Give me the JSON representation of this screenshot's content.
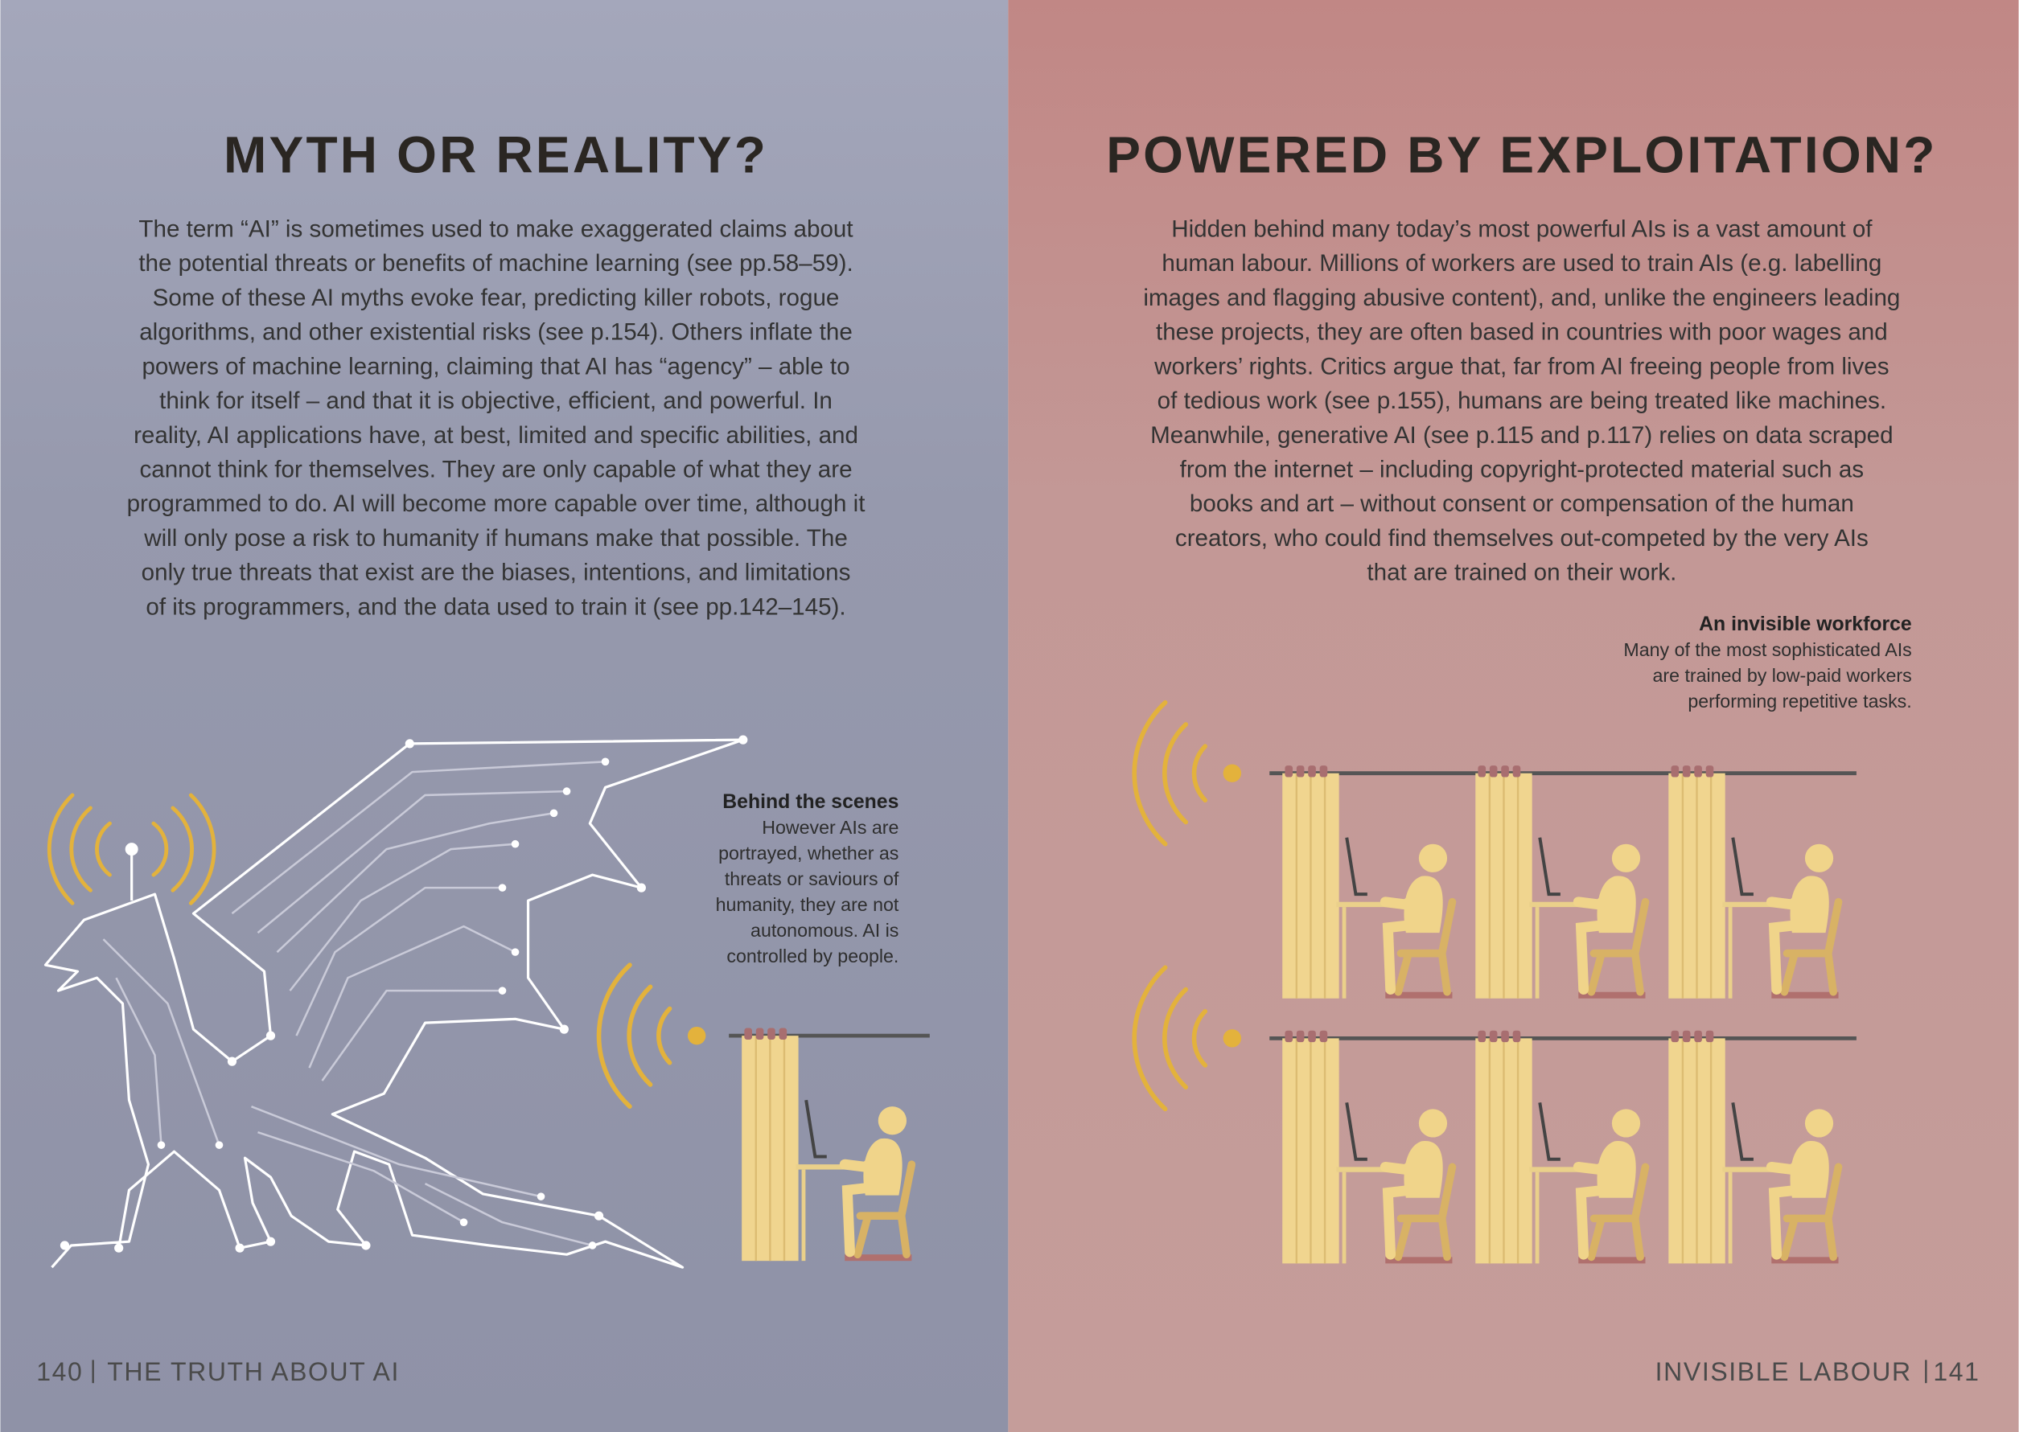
{
  "left_page": {
    "title": "MYTH OR REALITY?",
    "body": [
      "The term “AI” is sometimes used to make exaggerated claims about",
      "the potential threats or benefits of machine learning (see pp.58–59).",
      "Some of these AI myths evoke fear, predicting killer robots, rogue",
      "algorithms, and other existential risks (see p.154). Others inflate the",
      "powers of machine learning, claiming that AI has “agency” – able to",
      "think for itself – and that it is objective, efficient, and powerful. In",
      "reality, AI applications have, at best, limited and specific abilities, and",
      "cannot think for themselves. They are only capable of what they are",
      "programmed to do. AI will become more capable over time, although it",
      "will only pose a risk to humanity if humans make that possible. The",
      "only true threats that exist are the biases, intentions, and limitations",
      "of its programmers, and the data used to train it (see pp.142–145)."
    ],
    "caption": {
      "title": "Behind the scenes",
      "lines": [
        "However AIs are",
        "portrayed, whether as",
        "threats or saviours of",
        "humanity, they are not",
        "autonomous. AI is",
        "controlled by people."
      ]
    },
    "footer": {
      "page_number": "140",
      "section": "THE TRUTH ABOUT AI"
    }
  },
  "right_page": {
    "title": "POWERED BY EXPLOITATION?",
    "body": [
      "Hidden behind many today’s most powerful AIs is a vast amount of",
      "human labour. Millions of workers are used to train AIs (e.g. labelling",
      "images and flagging abusive content), and, unlike the engineers leading",
      "these projects, they are often based in countries with poor wages and",
      "workers’ rights. Critics argue that, far from AI freeing people from lives",
      "of tedious work (see p.155), humans are being treated like machines.",
      "Meanwhile, generative AI (see p.115 and p.117) relies on data scraped",
      "from the internet – including copyright-protected material such as",
      "books and art – without consent or compensation of the human",
      "creators, who could find themselves out-competed by the very AIs",
      "that are trained on their work."
    ],
    "caption": {
      "title": "An invisible workforce",
      "lines": [
        "Many of the most sophisticated AIs",
        "are trained by low-paid workers",
        "performing repetitive tasks."
      ]
    },
    "footer": {
      "page_number": "141",
      "section": "INVISIBLE LABOUR"
    }
  }
}
